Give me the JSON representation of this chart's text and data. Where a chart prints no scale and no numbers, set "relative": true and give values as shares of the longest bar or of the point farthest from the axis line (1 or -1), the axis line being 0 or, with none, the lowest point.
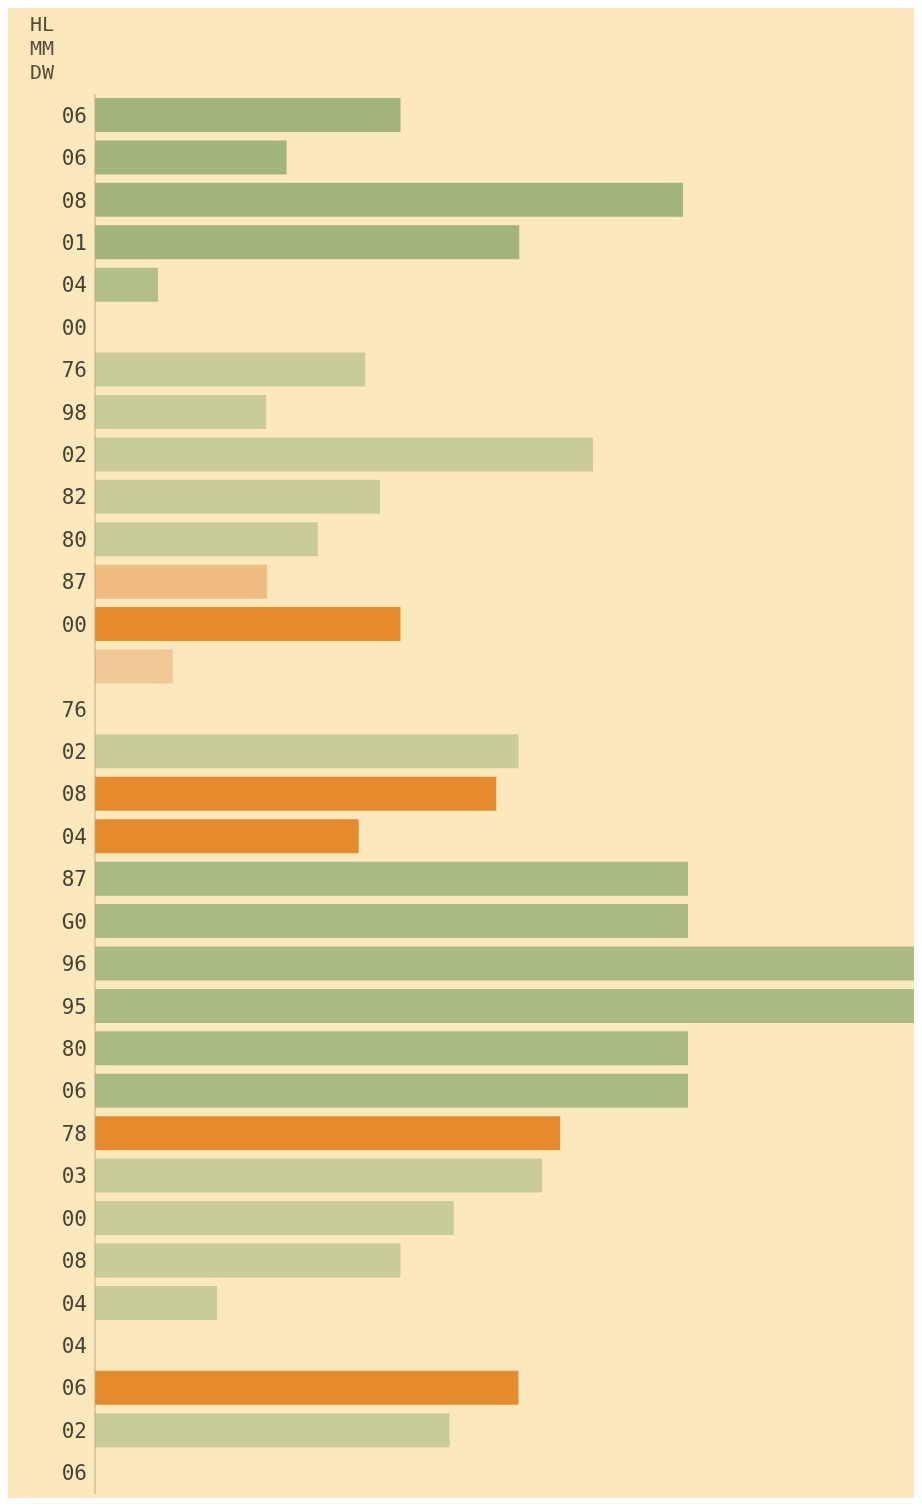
{
  "chart_data": {
    "type": "bar",
    "orientation": "horizontal",
    "relative": true,
    "title": "HL MM DW",
    "categories": [
      "06",
      "06",
      "08",
      "01",
      "04",
      "00",
      "76",
      "98",
      "02",
      "82",
      "80",
      "87",
      "00",
      null,
      "76",
      "02",
      "08",
      "04",
      "87",
      "G0",
      "96",
      "95",
      "80",
      "06",
      "78",
      "03",
      "00",
      "08",
      "04",
      "04",
      "06",
      "02",
      "06"
    ],
    "values": [
      0.373,
      0.234,
      0.718,
      0.518,
      0.077,
      null,
      0.33,
      0.209,
      0.608,
      0.348,
      0.272,
      0.21,
      0.373,
      0.095,
      null,
      0.517,
      0.49,
      0.322,
      0.724,
      0.724,
      1,
      1,
      0.724,
      0.724,
      0.568,
      0.546,
      0.438,
      0.373,
      0.149,
      null,
      0.517,
      0.433,
      null
    ],
    "colors": [
      "#a3b57f",
      "#a3b57f",
      "#a3b57f",
      "#a3b57f",
      "#b3c08c",
      "#b3c08c",
      "#c9cc9a",
      "#c9cc9a",
      "#c9cc9a",
      "#c9cc9a",
      "#c9cc9a",
      "#f0bc80",
      "#e68a2e",
      "#f1c896",
      "#c9cc9a",
      "#c9cc9a",
      "#e68a2e",
      "#e68a2e",
      "#a9ba82",
      "#a9ba82",
      "#a9ba82",
      "#a9ba82",
      "#a9ba82",
      "#a9ba82",
      "#e68a2e",
      "#c9cc9a",
      "#c9cc9a",
      "#c9cc9a",
      "#c9cc9a",
      "#c9cc9a",
      "#e68a2e",
      "#c9cc9a",
      "#c9cc9a"
    ]
  }
}
